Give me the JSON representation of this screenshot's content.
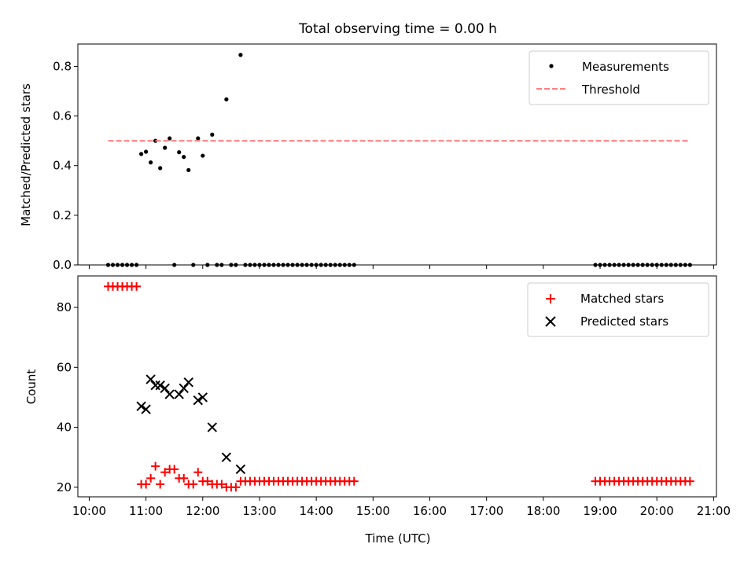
{
  "chart_data": {
    "title": "Total observing time = 0.00 h",
    "x_axis": {
      "label": "Time (UTC)",
      "range_hours": [
        9.8,
        21.05
      ],
      "tick_hours": [
        10,
        11,
        12,
        13,
        14,
        15,
        16,
        17,
        18,
        19,
        20,
        21
      ],
      "tick_labels": [
        "10:00",
        "11:00",
        "12:00",
        "13:00",
        "14:00",
        "15:00",
        "16:00",
        "17:00",
        "18:00",
        "19:00",
        "20:00",
        "21:00"
      ]
    },
    "panels": [
      {
        "type": "scatter",
        "ylabel": "Matched/Predicted stars",
        "ylim": [
          0,
          0.89
        ],
        "yticks": [
          0.0,
          0.2,
          0.4,
          0.6,
          0.8
        ],
        "ytick_labels": [
          "0.0",
          "0.2",
          "0.4",
          "0.6",
          "0.8"
        ],
        "legend_position": "top-right",
        "series": [
          {
            "name": "Measurements",
            "marker": "dot",
            "color": "#000000",
            "points": [
              [
                "10:20",
                0.0
              ],
              [
                "10:25",
                0.0
              ],
              [
                "10:30",
                0.0
              ],
              [
                "10:35",
                0.0
              ],
              [
                "10:40",
                0.0
              ],
              [
                "10:45",
                0.0
              ],
              [
                "10:50",
                0.0
              ],
              [
                "10:55",
                0.447
              ],
              [
                "11:00",
                0.456
              ],
              [
                "11:05",
                0.413
              ],
              [
                "11:10",
                0.5
              ],
              [
                "11:15",
                0.39
              ],
              [
                "11:20",
                0.472
              ],
              [
                "11:25",
                0.51
              ],
              [
                "11:30",
                0.0
              ],
              [
                "11:35",
                0.454
              ],
              [
                "11:40",
                0.435
              ],
              [
                "11:45",
                0.382
              ],
              [
                "11:50",
                0.0
              ],
              [
                "11:55",
                0.51
              ],
              [
                "12:00",
                0.44
              ],
              [
                "12:05",
                0.0
              ],
              [
                "12:10",
                0.525
              ],
              [
                "12:15",
                0.0
              ],
              [
                "12:20",
                0.0
              ],
              [
                "12:25",
                0.667
              ],
              [
                "12:30",
                0.0
              ],
              [
                "12:35",
                0.0
              ],
              [
                "12:40",
                0.846
              ],
              [
                "12:45",
                0.0
              ],
              [
                "12:50",
                0.0
              ],
              [
                "12:55",
                0.0
              ],
              [
                "13:00",
                0.0
              ],
              [
                "13:05",
                0.0
              ],
              [
                "13:10",
                0.0
              ],
              [
                "13:15",
                0.0
              ],
              [
                "13:20",
                0.0
              ],
              [
                "13:25",
                0.0
              ],
              [
                "13:30",
                0.0
              ],
              [
                "13:35",
                0.0
              ],
              [
                "13:40",
                0.0
              ],
              [
                "13:45",
                0.0
              ],
              [
                "13:50",
                0.0
              ],
              [
                "13:55",
                0.0
              ],
              [
                "14:00",
                0.0
              ],
              [
                "14:05",
                0.0
              ],
              [
                "14:10",
                0.0
              ],
              [
                "14:15",
                0.0
              ],
              [
                "14:20",
                0.0
              ],
              [
                "14:25",
                0.0
              ],
              [
                "14:30",
                0.0
              ],
              [
                "14:35",
                0.0
              ],
              [
                "14:40",
                0.0
              ],
              [
                "18:55",
                0.0
              ],
              [
                "19:00",
                0.0
              ],
              [
                "19:05",
                0.0
              ],
              [
                "19:10",
                0.0
              ],
              [
                "19:15",
                0.0
              ],
              [
                "19:20",
                0.0
              ],
              [
                "19:25",
                0.0
              ],
              [
                "19:30",
                0.0
              ],
              [
                "19:35",
                0.0
              ],
              [
                "19:40",
                0.0
              ],
              [
                "19:45",
                0.0
              ],
              [
                "19:50",
                0.0
              ],
              [
                "19:55",
                0.0
              ],
              [
                "20:00",
                0.0
              ],
              [
                "20:05",
                0.0
              ],
              [
                "20:10",
                0.0
              ],
              [
                "20:15",
                0.0
              ],
              [
                "20:20",
                0.0
              ],
              [
                "20:25",
                0.0
              ],
              [
                "20:30",
                0.0
              ],
              [
                "20:35",
                0.0
              ]
            ]
          },
          {
            "name": "Threshold",
            "marker": "dashed-line",
            "color": "#ff7f7f",
            "points": [
              [
                "10:20",
                0.5
              ],
              [
                "20:35",
                0.5
              ]
            ]
          }
        ]
      },
      {
        "type": "scatter",
        "ylabel": "Count",
        "ylim": [
          16.8,
          90.5
        ],
        "yticks": [
          20,
          40,
          60,
          80
        ],
        "ytick_labels": [
          "20",
          "40",
          "60",
          "80"
        ],
        "legend_position": "top-right",
        "series": [
          {
            "name": "Matched stars",
            "marker": "plus",
            "color": "#ff0000",
            "points": [
              [
                "10:20",
                87
              ],
              [
                "10:25",
                87
              ],
              [
                "10:30",
                87
              ],
              [
                "10:35",
                87
              ],
              [
                "10:40",
                87
              ],
              [
                "10:45",
                87
              ],
              [
                "10:50",
                87
              ],
              [
                "10:55",
                21
              ],
              [
                "11:00",
                21
              ],
              [
                "11:05",
                23
              ],
              [
                "11:10",
                27
              ],
              [
                "11:15",
                21
              ],
              [
                "11:20",
                25
              ],
              [
                "11:25",
                26
              ],
              [
                "11:30",
                26
              ],
              [
                "11:35",
                23
              ],
              [
                "11:40",
                23
              ],
              [
                "11:45",
                21
              ],
              [
                "11:50",
                21
              ],
              [
                "11:55",
                25
              ],
              [
                "12:00",
                22
              ],
              [
                "12:05",
                22
              ],
              [
                "12:10",
                21
              ],
              [
                "12:15",
                21
              ],
              [
                "12:20",
                21
              ],
              [
                "12:25",
                20
              ],
              [
                "12:30",
                20
              ],
              [
                "12:35",
                20
              ],
              [
                "12:40",
                22
              ],
              [
                "12:45",
                22
              ],
              [
                "12:50",
                22
              ],
              [
                "12:55",
                22
              ],
              [
                "13:00",
                22
              ],
              [
                "13:05",
                22
              ],
              [
                "13:10",
                22
              ],
              [
                "13:15",
                22
              ],
              [
                "13:20",
                22
              ],
              [
                "13:25",
                22
              ],
              [
                "13:30",
                22
              ],
              [
                "13:35",
                22
              ],
              [
                "13:40",
                22
              ],
              [
                "13:45",
                22
              ],
              [
                "13:50",
                22
              ],
              [
                "13:55",
                22
              ],
              [
                "14:00",
                22
              ],
              [
                "14:05",
                22
              ],
              [
                "14:10",
                22
              ],
              [
                "14:15",
                22
              ],
              [
                "14:20",
                22
              ],
              [
                "14:25",
                22
              ],
              [
                "14:30",
                22
              ],
              [
                "14:35",
                22
              ],
              [
                "14:40",
                22
              ],
              [
                "18:55",
                22
              ],
              [
                "19:00",
                22
              ],
              [
                "19:05",
                22
              ],
              [
                "19:10",
                22
              ],
              [
                "19:15",
                22
              ],
              [
                "19:20",
                22
              ],
              [
                "19:25",
                22
              ],
              [
                "19:30",
                22
              ],
              [
                "19:35",
                22
              ],
              [
                "19:40",
                22
              ],
              [
                "19:45",
                22
              ],
              [
                "19:50",
                22
              ],
              [
                "19:55",
                22
              ],
              [
                "20:00",
                22
              ],
              [
                "20:05",
                22
              ],
              [
                "20:10",
                22
              ],
              [
                "20:15",
                22
              ],
              [
                "20:20",
                22
              ],
              [
                "20:25",
                22
              ],
              [
                "20:30",
                22
              ],
              [
                "20:35",
                22
              ]
            ]
          },
          {
            "name": "Predicted stars",
            "marker": "x",
            "color": "#000000",
            "points": [
              [
                "10:55",
                47
              ],
              [
                "11:00",
                46
              ],
              [
                "11:05",
                56
              ],
              [
                "11:10",
                54
              ],
              [
                "11:15",
                54
              ],
              [
                "11:20",
                53
              ],
              [
                "11:25",
                51
              ],
              [
                "11:35",
                51
              ],
              [
                "11:40",
                53
              ],
              [
                "11:45",
                55
              ],
              [
                "11:55",
                49
              ],
              [
                "12:00",
                50
              ],
              [
                "12:10",
                40
              ],
              [
                "12:25",
                30
              ],
              [
                "12:40",
                26
              ]
            ]
          }
        ]
      }
    ]
  }
}
